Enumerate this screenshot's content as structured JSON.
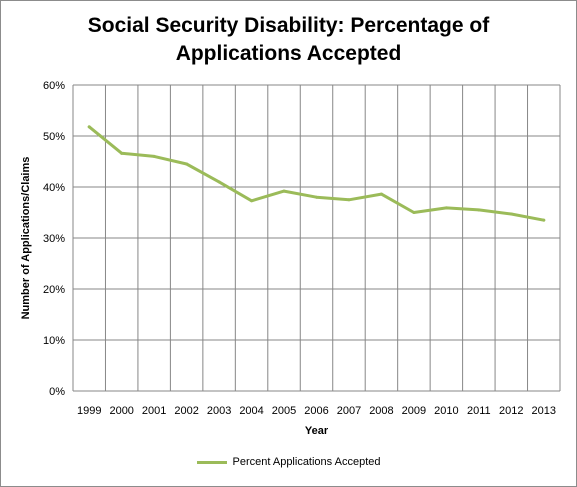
{
  "chart_data": {
    "type": "line",
    "title_line1": "Social Security Disability: Percentage of",
    "title_line2": "Applications Accepted",
    "xlabel": "Year",
    "ylabel": "Number of Applications/Claims",
    "categories": [
      "1999",
      "2000",
      "2001",
      "2002",
      "2003",
      "2004",
      "2005",
      "2006",
      "2007",
      "2008",
      "2009",
      "2010",
      "2011",
      "2012",
      "2013"
    ],
    "y_ticks": [
      "0%",
      "10%",
      "20%",
      "30%",
      "40%",
      "50%",
      "60%"
    ],
    "ylim": [
      0,
      60
    ],
    "grid": true,
    "legend_position": "bottom",
    "series": [
      {
        "name": "Percent Applications Accepted",
        "color": "#9bbb59",
        "values": [
          51.8,
          46.6,
          46.0,
          44.5,
          41.0,
          37.3,
          39.2,
          38.0,
          37.5,
          38.6,
          35.0,
          35.9,
          35.5,
          34.7,
          33.5
        ]
      }
    ]
  }
}
